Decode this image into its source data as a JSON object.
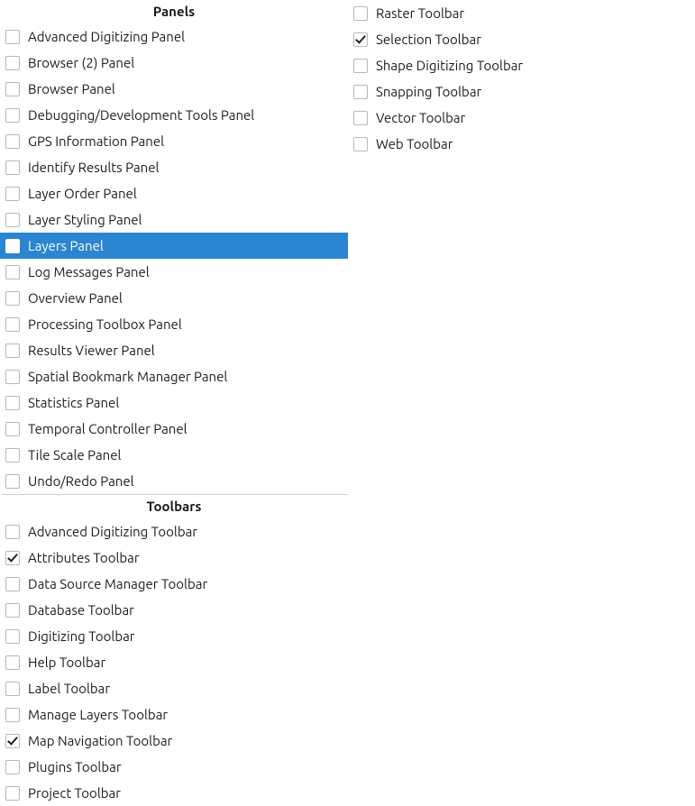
{
  "sections": {
    "panels": {
      "title": "Panels",
      "items": [
        {
          "label": "Advanced Digitizing Panel",
          "checked": false,
          "selected": false
        },
        {
          "label": "Browser (2) Panel",
          "checked": false,
          "selected": false
        },
        {
          "label": "Browser Panel",
          "checked": false,
          "selected": false
        },
        {
          "label": "Debugging/Development Tools Panel",
          "checked": false,
          "selected": false
        },
        {
          "label": "GPS Information Panel",
          "checked": false,
          "selected": false
        },
        {
          "label": "Identify Results Panel",
          "checked": false,
          "selected": false
        },
        {
          "label": "Layer Order Panel",
          "checked": false,
          "selected": false
        },
        {
          "label": "Layer Styling Panel",
          "checked": false,
          "selected": false
        },
        {
          "label": "Layers Panel",
          "checked": false,
          "selected": true
        },
        {
          "label": "Log Messages Panel",
          "checked": false,
          "selected": false
        },
        {
          "label": "Overview Panel",
          "checked": false,
          "selected": false
        },
        {
          "label": "Processing Toolbox Panel",
          "checked": false,
          "selected": false
        },
        {
          "label": "Results Viewer Panel",
          "checked": false,
          "selected": false
        },
        {
          "label": "Spatial Bookmark Manager Panel",
          "checked": false,
          "selected": false
        },
        {
          "label": "Statistics Panel",
          "checked": false,
          "selected": false
        },
        {
          "label": "Temporal Controller Panel",
          "checked": false,
          "selected": false
        },
        {
          "label": "Tile Scale Panel",
          "checked": false,
          "selected": false
        },
        {
          "label": "Undo/Redo Panel",
          "checked": false,
          "selected": false
        }
      ]
    },
    "toolbars": {
      "title": "Toolbars",
      "items_left": [
        {
          "label": "Advanced Digitizing Toolbar",
          "checked": false,
          "selected": false
        },
        {
          "label": "Attributes Toolbar",
          "checked": true,
          "selected": false
        },
        {
          "label": "Data Source Manager Toolbar",
          "checked": false,
          "selected": false
        },
        {
          "label": "Database Toolbar",
          "checked": false,
          "selected": false
        },
        {
          "label": "Digitizing Toolbar",
          "checked": false,
          "selected": false
        },
        {
          "label": "Help Toolbar",
          "checked": false,
          "selected": false
        },
        {
          "label": "Label Toolbar",
          "checked": false,
          "selected": false
        },
        {
          "label": "Manage Layers Toolbar",
          "checked": false,
          "selected": false
        },
        {
          "label": "Map Navigation Toolbar",
          "checked": true,
          "selected": false
        },
        {
          "label": "Plugins Toolbar",
          "checked": false,
          "selected": false
        },
        {
          "label": "Project Toolbar",
          "checked": false,
          "selected": false
        }
      ],
      "items_right": [
        {
          "label": "Raster Toolbar",
          "checked": false,
          "selected": false
        },
        {
          "label": "Selection Toolbar",
          "checked": true,
          "selected": false
        },
        {
          "label": "Shape Digitizing Toolbar",
          "checked": false,
          "selected": false
        },
        {
          "label": "Snapping Toolbar",
          "checked": false,
          "selected": false
        },
        {
          "label": "Vector Toolbar",
          "checked": false,
          "selected": false
        },
        {
          "label": "Web Toolbar",
          "checked": false,
          "selected": false
        }
      ]
    }
  },
  "colors": {
    "selection_bg": "#2b85d0",
    "selection_fg": "#ffffff",
    "checkbox_border": "#b8b8b8",
    "divider": "#d0d0d0"
  }
}
